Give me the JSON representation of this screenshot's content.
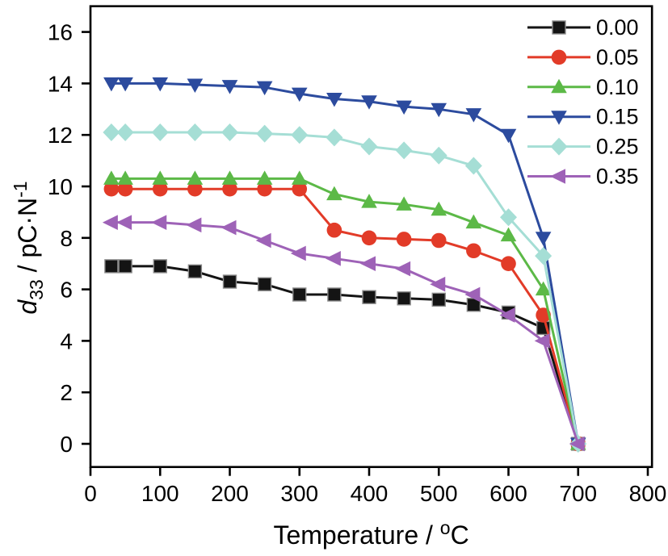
{
  "figure": {
    "description": "Piezoelectric coefficient d33 versus temperature for six compositions",
    "background_color": "#ffffff",
    "axis_color": "#000000"
  },
  "chart_data": {
    "type": "line",
    "title": "",
    "xlabel": "Temperature / °C",
    "xlabel_parts": [
      {
        "t": "Temperature / "
      },
      {
        "t": "o",
        "script": "super"
      },
      {
        "t": "C"
      }
    ],
    "ylabel": "d33 / pC·N-1",
    "ylabel_parts": [
      {
        "t": "d",
        "style": "italic"
      },
      {
        "t": "33",
        "script": "sub"
      },
      {
        "t": " / pC·N"
      },
      {
        "t": "-1",
        "script": "super"
      }
    ],
    "xlim": [
      0,
      806
    ],
    "ylim": [
      -0.9,
      17
    ],
    "xticks": [
      0,
      100,
      200,
      300,
      400,
      500,
      600,
      700,
      800
    ],
    "yticks": [
      0,
      2,
      4,
      6,
      8,
      10,
      12,
      14,
      16
    ],
    "grid": false,
    "legend_position": "top-right",
    "x": [
      30,
      50,
      100,
      150,
      200,
      250,
      300,
      350,
      400,
      450,
      500,
      550,
      600,
      650,
      700
    ],
    "series": [
      {
        "name": "0.00",
        "marker": "square",
        "color": "#141414",
        "values": [
          6.9,
          6.9,
          6.9,
          6.7,
          6.3,
          6.2,
          5.8,
          5.8,
          5.7,
          5.65,
          5.6,
          5.4,
          5.1,
          4.5,
          0
        ]
      },
      {
        "name": "0.05",
        "marker": "circle",
        "color": "#e23b28",
        "values": [
          9.9,
          9.9,
          9.9,
          9.9,
          9.9,
          9.9,
          9.9,
          8.3,
          8.0,
          7.95,
          7.9,
          7.5,
          7.0,
          5.0,
          0
        ]
      },
      {
        "name": "0.10",
        "marker": "triangle-up",
        "color": "#5cb947",
        "values": [
          10.3,
          10.3,
          10.3,
          10.3,
          10.3,
          10.3,
          10.3,
          9.7,
          9.4,
          9.3,
          9.1,
          8.6,
          8.1,
          6.0,
          0
        ]
      },
      {
        "name": "0.15",
        "marker": "triangle-down",
        "color": "#2c4b9e",
        "values": [
          14.0,
          14.0,
          14.0,
          13.95,
          13.9,
          13.85,
          13.6,
          13.4,
          13.3,
          13.1,
          13.0,
          12.8,
          12.0,
          8.0,
          0
        ]
      },
      {
        "name": "0.25",
        "marker": "diamond",
        "color": "#a5ded5",
        "values": [
          12.1,
          12.1,
          12.1,
          12.1,
          12.1,
          12.05,
          12.0,
          11.9,
          11.55,
          11.4,
          11.2,
          10.8,
          8.8,
          7.3,
          0
        ]
      },
      {
        "name": "0.35",
        "marker": "triangle-left",
        "color": "#9e62b7",
        "values": [
          8.6,
          8.6,
          8.6,
          8.5,
          8.4,
          7.9,
          7.4,
          7.2,
          7.0,
          6.8,
          6.2,
          5.8,
          5.0,
          4.0,
          0
        ]
      }
    ]
  }
}
